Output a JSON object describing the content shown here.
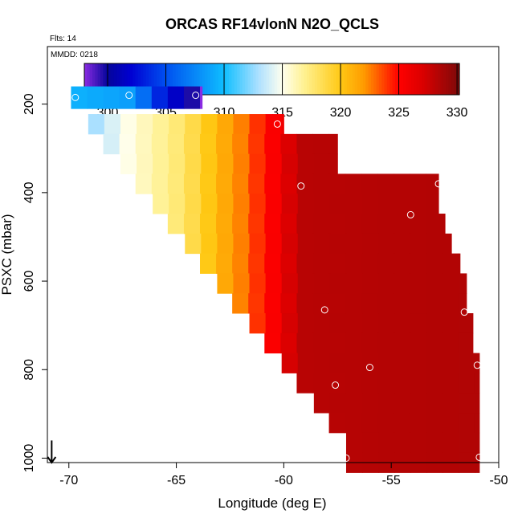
{
  "chart_data": {
    "type": "heatmap",
    "title": "ORCAS RF14vlonN N2O_QCLS",
    "flights_label": "Flts: 14",
    "date_label": "MMDD: 0218",
    "xlabel": "Longitude (deg E)",
    "ylabel": "PSXC (mbar)",
    "xlim": [
      -71,
      -50
    ],
    "ylim": [
      1010,
      70
    ],
    "x_ticks": [
      -70,
      -65,
      -60,
      -55,
      -50
    ],
    "y_ticks": [
      200,
      400,
      600,
      800,
      1000
    ],
    "colorbar": {
      "range": [
        298,
        330.2
      ],
      "ticks": [
        300,
        305,
        310,
        315,
        320,
        325,
        330
      ]
    },
    "cell_width_deg": 0.75,
    "cell_height_mbar": 45,
    "band_centers_mbar": [
      185,
      245,
      290,
      335,
      380,
      425,
      470,
      515,
      560,
      605,
      650,
      695,
      740,
      785,
      830,
      875,
      920,
      965,
      1010
    ],
    "band_xmin": [
      -69.9,
      -69.1,
      -68.4,
      -67.6,
      -66.9,
      -66.1,
      -65.4,
      -64.6,
      -63.9,
      -63.1,
      -62.4,
      -61.6,
      -60.9,
      -60.1,
      -59.4,
      -58.6,
      -57.9,
      -57.1,
      -57.1
    ],
    "band_xmax": [
      -63.8,
      -60.0,
      -57.5,
      -57.5,
      -52.8,
      -52.8,
      -52.5,
      -52.2,
      -51.8,
      -51.5,
      -51.5,
      -51.2,
      -51.2,
      -50.9,
      -50.9,
      -50.9,
      -50.9,
      -50.9,
      -50.9
    ],
    "rainbow_x": [
      -70,
      -69,
      -68,
      -67,
      -66,
      -65,
      -64,
      -63,
      -62,
      -61,
      -60,
      -59.5,
      -50
    ],
    "rainbow_v": [
      311.5,
      312.5,
      314,
      315.5,
      316.5,
      317.5,
      319,
      321,
      322.5,
      324.5,
      326,
      328.2,
      328.5
    ],
    "top_band_x": [
      -70,
      -67,
      -66,
      -65,
      -64.5,
      -64
    ],
    "top_band_v": [
      309.5,
      308.5,
      304,
      301.5,
      301,
      298
    ],
    "point_markers": [
      {
        "lon": -69.7,
        "p": 185
      },
      {
        "lon": -67.2,
        "p": 180
      },
      {
        "lon": -64.1,
        "p": 180
      },
      {
        "lon": -60.3,
        "p": 245
      },
      {
        "lon": -59.2,
        "p": 385
      },
      {
        "lon": -52.8,
        "p": 380
      },
      {
        "lon": -54.1,
        "p": 450
      },
      {
        "lon": -58.1,
        "p": 665
      },
      {
        "lon": -51.6,
        "p": 670
      },
      {
        "lon": -56.0,
        "p": 795
      },
      {
        "lon": -51.0,
        "p": 790
      },
      {
        "lon": -57.6,
        "p": 835
      },
      {
        "lon": -57.1,
        "p": 1000
      },
      {
        "lon": -50.9,
        "p": 998
      }
    ],
    "arrow_marker": {
      "lon": -70.8,
      "p_from": 960,
      "p_to": 1010
    }
  }
}
